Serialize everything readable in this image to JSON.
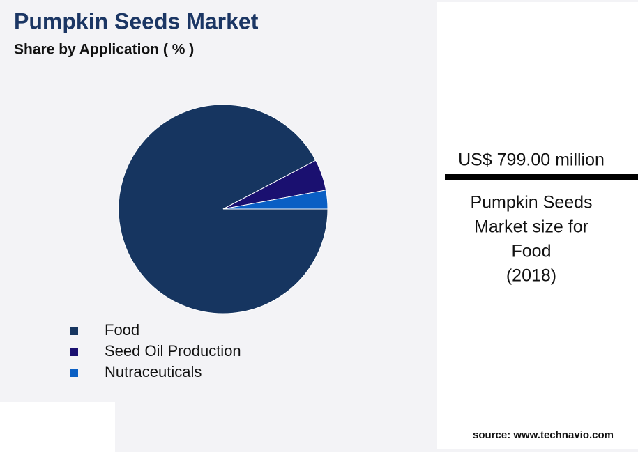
{
  "chart_data": {
    "type": "pie",
    "title": "Pumpkin Seeds Market",
    "subtitle": "Share by Application ( % )",
    "categories": [
      "Food",
      "Seed Oil Production",
      "Nutraceuticals"
    ],
    "values": [
      92.3,
      4.8,
      2.9
    ],
    "colors": [
      "#163560",
      "#1a1070",
      "#0a5fc4"
    ]
  },
  "panel": {
    "value": "US$ 799.00 million",
    "caption": [
      "Pumpkin Seeds",
      "Market size for",
      "Food",
      "(2018)"
    ]
  },
  "source": "source: www.technavio.com"
}
